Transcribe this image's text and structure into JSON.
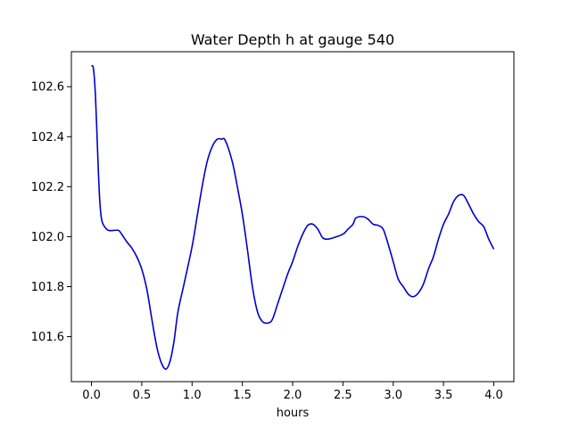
{
  "chart_data": {
    "type": "line",
    "title": "Water Depth h at gauge 540",
    "xlabel": "hours",
    "ylabel": "",
    "xlim": [
      -0.2,
      4.2
    ],
    "ylim": [
      101.42,
      102.74
    ],
    "xticks": [
      0.0,
      0.5,
      1.0,
      1.5,
      2.0,
      2.5,
      3.0,
      3.5,
      4.0
    ],
    "xtick_labels": [
      "0.0",
      "0.5",
      "1.0",
      "1.5",
      "2.0",
      "2.5",
      "3.0",
      "3.5",
      "4.0"
    ],
    "yticks": [
      101.6,
      101.8,
      102.0,
      102.2,
      102.4,
      102.6
    ],
    "ytick_labels": [
      "101.6",
      "101.8",
      "102.0",
      "102.2",
      "102.4",
      "102.6"
    ],
    "grid": false,
    "legend": "none",
    "series": [
      {
        "color": "#0000cc",
        "points": [
          [
            0.0,
            102.685
          ],
          [
            0.02,
            102.67
          ],
          [
            0.04,
            102.56
          ],
          [
            0.06,
            102.35
          ],
          [
            0.08,
            102.16
          ],
          [
            0.1,
            102.07
          ],
          [
            0.13,
            102.04
          ],
          [
            0.17,
            102.025
          ],
          [
            0.22,
            102.025
          ],
          [
            0.27,
            102.025
          ],
          [
            0.3,
            102.01
          ],
          [
            0.35,
            101.98
          ],
          [
            0.4,
            101.955
          ],
          [
            0.45,
            101.92
          ],
          [
            0.5,
            101.87
          ],
          [
            0.55,
            101.79
          ],
          [
            0.6,
            101.67
          ],
          [
            0.63,
            101.6
          ],
          [
            0.66,
            101.54
          ],
          [
            0.7,
            101.49
          ],
          [
            0.74,
            101.47
          ],
          [
            0.78,
            101.5
          ],
          [
            0.82,
            101.58
          ],
          [
            0.86,
            101.7
          ],
          [
            0.92,
            101.81
          ],
          [
            1.0,
            101.96
          ],
          [
            1.05,
            102.08
          ],
          [
            1.1,
            102.2
          ],
          [
            1.15,
            102.3
          ],
          [
            1.2,
            102.36
          ],
          [
            1.25,
            102.39
          ],
          [
            1.29,
            102.39
          ],
          [
            1.33,
            102.385
          ],
          [
            1.4,
            102.3
          ],
          [
            1.45,
            102.2
          ],
          [
            1.5,
            102.09
          ],
          [
            1.55,
            101.95
          ],
          [
            1.6,
            101.8
          ],
          [
            1.65,
            101.7
          ],
          [
            1.7,
            101.66
          ],
          [
            1.76,
            101.655
          ],
          [
            1.8,
            101.67
          ],
          [
            1.85,
            101.73
          ],
          [
            1.9,
            101.79
          ],
          [
            1.95,
            101.85
          ],
          [
            2.0,
            101.9
          ],
          [
            2.05,
            101.96
          ],
          [
            2.1,
            102.01
          ],
          [
            2.15,
            102.045
          ],
          [
            2.2,
            102.05
          ],
          [
            2.25,
            102.03
          ],
          [
            2.3,
            101.995
          ],
          [
            2.35,
            101.99
          ],
          [
            2.4,
            101.995
          ],
          [
            2.5,
            102.01
          ],
          [
            2.55,
            102.03
          ],
          [
            2.6,
            102.05
          ],
          [
            2.63,
            102.075
          ],
          [
            2.7,
            102.08
          ],
          [
            2.75,
            102.07
          ],
          [
            2.8,
            102.05
          ],
          [
            2.85,
            102.045
          ],
          [
            2.9,
            102.03
          ],
          [
            2.95,
            101.97
          ],
          [
            3.0,
            101.9
          ],
          [
            3.05,
            101.83
          ],
          [
            3.1,
            101.8
          ],
          [
            3.15,
            101.77
          ],
          [
            3.2,
            101.76
          ],
          [
            3.25,
            101.775
          ],
          [
            3.3,
            101.81
          ],
          [
            3.35,
            101.87
          ],
          [
            3.4,
            101.92
          ],
          [
            3.45,
            101.99
          ],
          [
            3.5,
            102.05
          ],
          [
            3.55,
            102.09
          ],
          [
            3.6,
            102.14
          ],
          [
            3.65,
            102.165
          ],
          [
            3.7,
            102.165
          ],
          [
            3.75,
            102.13
          ],
          [
            3.8,
            102.09
          ],
          [
            3.85,
            102.06
          ],
          [
            3.9,
            102.04
          ],
          [
            3.95,
            101.99
          ],
          [
            4.0,
            101.95
          ]
        ]
      }
    ]
  }
}
